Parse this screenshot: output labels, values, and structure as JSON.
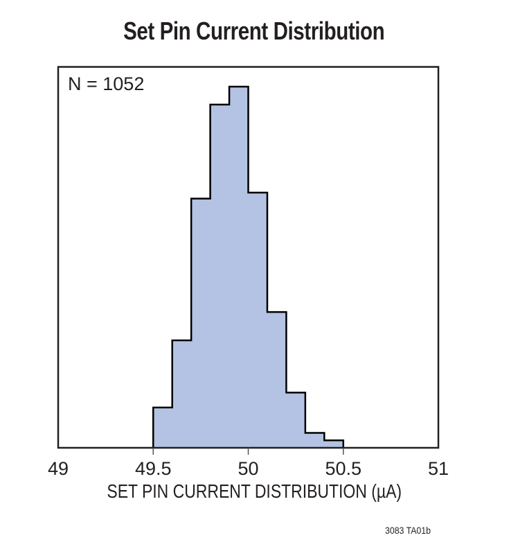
{
  "chart_data": {
    "type": "bar",
    "subtype": "histogram",
    "title": "Set Pin Current Distribution",
    "xlabel": "SET PIN CURRENT DISTRIBUTION (µA)",
    "ylabel": "",
    "annotation": "N = 1052",
    "footnote": "3083 TA01b",
    "xlim": [
      49,
      51
    ],
    "x_ticks": [
      "49",
      "49.5",
      "50",
      "50.5",
      "51"
    ],
    "x_tick_values": [
      49,
      49.5,
      50,
      50.5,
      51
    ],
    "bin_width": 0.1,
    "bin_edges": [
      49.5,
      49.6,
      49.7,
      49.8,
      49.9,
      50.0,
      50.1,
      50.2,
      50.3,
      50.4,
      50.5
    ],
    "categories": [
      "49.5-49.6",
      "49.6-49.7",
      "49.7-49.8",
      "49.8-49.9",
      "49.9-50.0",
      "50.0-50.1",
      "50.1-50.2",
      "50.2-50.3",
      "50.3-50.4",
      "50.4-50.5"
    ],
    "values": [
      27,
      72,
      167,
      230,
      242,
      171,
      91,
      37,
      10,
      5
    ],
    "grid": false,
    "legend": null,
    "colors": {
      "fill": "#b4c3e3",
      "outline": "#000000",
      "frame": "#231f20"
    }
  },
  "labels": {
    "title": "Set Pin Current Distribution",
    "n_annotation": "N = 1052",
    "x_axis_label": "SET PIN CURRENT DISTRIBUTION (µA)",
    "footnote": "3083 TA01b",
    "x_ticks": [
      "49",
      "49.5",
      "50",
      "50.5",
      "51"
    ]
  }
}
